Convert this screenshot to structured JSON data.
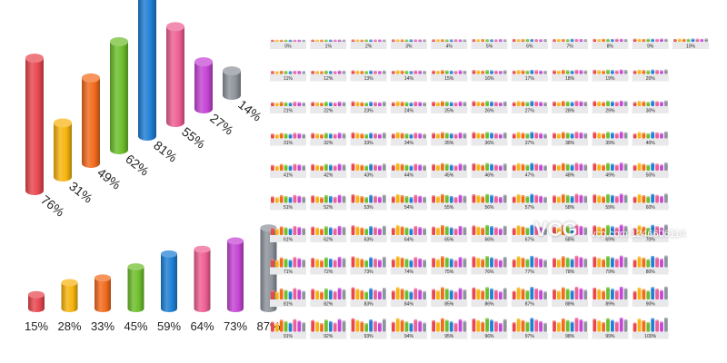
{
  "chart_data": [
    {
      "type": "bar",
      "style": "3d-isometric-cylinders",
      "title": "",
      "values": [
        76,
        31,
        49,
        62,
        81,
        55,
        27,
        14
      ],
      "labels": [
        "76%",
        "31%",
        "49%",
        "62%",
        "81%",
        "55%",
        "27%",
        "14%"
      ],
      "colors": [
        "#e8474f",
        "#f6b40e",
        "#f26b1d",
        "#6dbe2c",
        "#1f7fd4",
        "#ee5f93",
        "#c545d4",
        "#8e949c"
      ],
      "ylim": [
        0,
        100
      ]
    },
    {
      "type": "bar",
      "style": "3d-front-cylinders",
      "title": "",
      "values": [
        15,
        28,
        33,
        45,
        59,
        64,
        73,
        87
      ],
      "labels": [
        "15%",
        "28%",
        "33%",
        "45%",
        "59%",
        "64%",
        "73%",
        "87%"
      ],
      "colors": [
        "#e8474f",
        "#f6b40e",
        "#f26b1d",
        "#6dbe2c",
        "#1f7fd4",
        "#ee5f93",
        "#c545d4",
        "#8e949c"
      ],
      "ylim": [
        0,
        100
      ]
    },
    {
      "type": "bar",
      "style": "mini-cylinder-grid",
      "title": "",
      "values": [
        0,
        1,
        2,
        3,
        4,
        5,
        6,
        7,
        8,
        9,
        10,
        11,
        12,
        13,
        14,
        15,
        16,
        17,
        18,
        19,
        20,
        21,
        22,
        23,
        24,
        25,
        26,
        27,
        28,
        29,
        30,
        31,
        32,
        33,
        34,
        35,
        36,
        37,
        38,
        39,
        40,
        41,
        42,
        43,
        44,
        45,
        46,
        47,
        48,
        49,
        50,
        51,
        52,
        53,
        54,
        55,
        56,
        57,
        58,
        59,
        60,
        61,
        62,
        63,
        64,
        65,
        66,
        67,
        68,
        69,
        70,
        71,
        72,
        73,
        74,
        75,
        76,
        77,
        78,
        79,
        80,
        81,
        82,
        83,
        84,
        85,
        86,
        87,
        88,
        89,
        90,
        91,
        92,
        93,
        94,
        95,
        96,
        97,
        98,
        99,
        100
      ],
      "label_suffix": "%",
      "palette": [
        "#e8474f",
        "#f6b40e",
        "#f26b1d",
        "#6dbe2c",
        "#1f7fd4",
        "#ee5f93",
        "#c545d4",
        "#8e949c"
      ]
    }
  ],
  "watermark": {
    "logo": "VCG",
    "id_text": "vcg.com/1246606114"
  }
}
